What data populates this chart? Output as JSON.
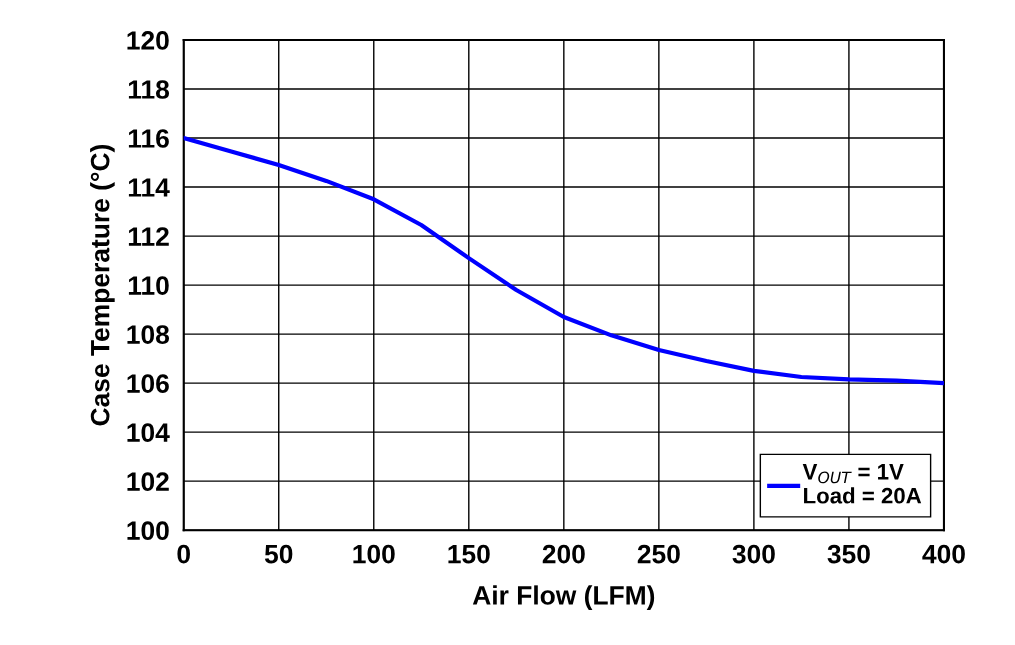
{
  "chart_data": {
    "type": "line",
    "xlabel": "Air Flow (LFM)",
    "ylabel": "Case Temperature (°C)",
    "x": [
      0,
      25,
      50,
      75,
      100,
      125,
      150,
      175,
      200,
      225,
      250,
      275,
      300,
      325,
      350,
      375,
      400
    ],
    "series": [
      {
        "name": "V$_{OUT}$ = 1V\nLoad = 20A",
        "color": "#0000ff",
        "values": [
          116.0,
          115.45,
          114.9,
          114.25,
          113.5,
          112.45,
          111.1,
          109.8,
          108.7,
          107.95,
          107.35,
          106.9,
          106.5,
          106.25,
          106.15,
          106.1,
          106.0
        ]
      }
    ],
    "xlim": [
      0,
      400
    ],
    "xticks": [
      0,
      50,
      100,
      150,
      200,
      250,
      300,
      350,
      400
    ],
    "ylim": [
      100,
      120
    ],
    "yticks": [
      100,
      102,
      104,
      106,
      108,
      110,
      112,
      114,
      116,
      118,
      120
    ],
    "grid": true,
    "legend": "bottom right",
    "marker": "none",
    "line_style": "solid"
  }
}
